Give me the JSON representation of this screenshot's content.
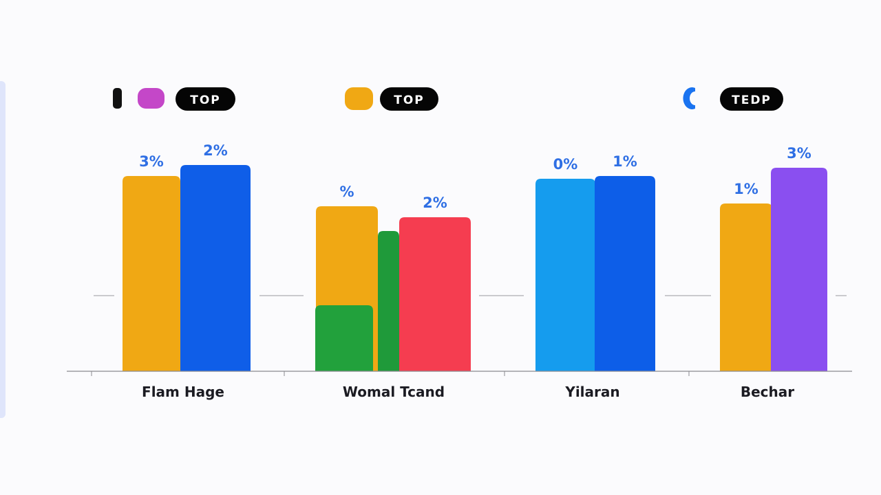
{
  "colors": {
    "value_label": "#2f6fe4",
    "axis": "#8a8a90",
    "pill_bg": "#050505",
    "pill_text": "#ffffff"
  },
  "legend": [
    {
      "label": "TOP",
      "icon": "black-bar-and-magenta-swatch",
      "swatch_colors": [
        "#111111",
        "#c447c8"
      ]
    },
    {
      "label": "TOP",
      "icon": "orange-swatch",
      "swatch_colors": [
        "#f0a814"
      ]
    },
    {
      "label": "TEDP",
      "icon": "blue-half-circle",
      "swatch_colors": [
        "#1a73f0"
      ]
    }
  ],
  "chart_data": {
    "type": "bar",
    "title": "",
    "xlabel": "",
    "ylabel": "",
    "categories": [
      "Flam Hage",
      "Womal Tcand",
      "Yilaran",
      "Bechar"
    ],
    "ylim": [
      0,
      100
    ],
    "groups": [
      {
        "category": "Flam Hage",
        "bars": [
          {
            "value": 71,
            "label": "3%",
            "color": "#f0a814"
          },
          {
            "value": 75,
            "label": "2%",
            "color": "#0f5ee8"
          }
        ]
      },
      {
        "category": "Womal Tcand",
        "bars": [
          {
            "value": 60,
            "label": "%",
            "color": "#f0a814"
          },
          {
            "value": 24,
            "label": "",
            "color": "#22a13c"
          },
          {
            "value": 51,
            "label": "",
            "color": "#1f9a3a"
          },
          {
            "value": 56,
            "label": "2%",
            "color": "#f53d50"
          }
        ]
      },
      {
        "category": "Yilaran",
        "bars": [
          {
            "value": 70,
            "label": "0%",
            "color": "#159cee"
          },
          {
            "value": 71,
            "label": "1%",
            "color": "#0d5ee8"
          }
        ]
      },
      {
        "category": "Bechar",
        "bars": [
          {
            "value": 61,
            "label": "1%",
            "color": "#f0a814"
          },
          {
            "value": 74,
            "label": "3%",
            "color": "#8a4ff0"
          }
        ]
      }
    ]
  }
}
